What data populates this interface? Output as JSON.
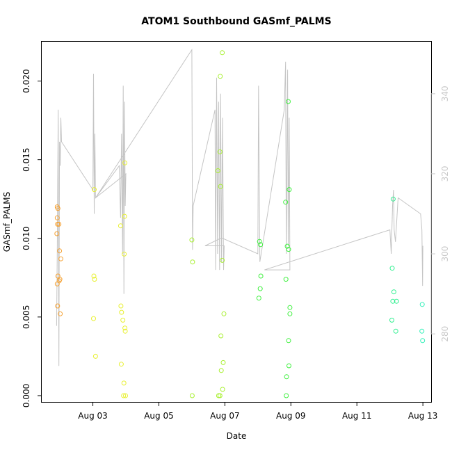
{
  "chart_data": {
    "type": "scatter",
    "title": "ATOM1 Southbound GASmf_PALMS",
    "xlabel": "Date",
    "ylabel": "GASmf_PALMS",
    "xlim": [
      1.45,
      13.25
    ],
    "ylim": [
      -0.0004,
      0.0225
    ],
    "x_unit": "day of August",
    "x_ticks": [
      {
        "value": 3,
        "label": "Aug 03"
      },
      {
        "value": 5,
        "label": "Aug 05"
      },
      {
        "value": 7,
        "label": "Aug 07"
      },
      {
        "value": 9,
        "label": "Aug 09"
      },
      {
        "value": 11,
        "label": "Aug 11"
      },
      {
        "value": 13,
        "label": "Aug 13"
      }
    ],
    "y_ticks": [
      {
        "value": 0,
        "label": "0.000"
      },
      {
        "value": 0.005,
        "label": "0.005"
      },
      {
        "value": 0.01,
        "label": "0.010"
      },
      {
        "value": 0.015,
        "label": "0.015"
      },
      {
        "value": 0.02,
        "label": "0.020"
      }
    ],
    "y2lim": [
      263,
      353
    ],
    "y2_ticks": [
      {
        "value": 280,
        "label": "280"
      },
      {
        "value": 300,
        "label": "300"
      },
      {
        "value": 320,
        "label": "320"
      },
      {
        "value": 340,
        "label": "340"
      }
    ],
    "grid": false,
    "legend": "none",
    "colors": {
      "frame": "#000000",
      "secondary_axis": "#c8c8c8",
      "secondary_line": "#c4c4c4",
      "orange": "#f5a030",
      "yellow": "#e8f030",
      "yellow_green": "#a8f030",
      "green": "#40f040",
      "spring_green": "#30f090",
      "cyan_green": "#30f0b8"
    },
    "points": [
      {
        "x": 1.92,
        "y": 0.012,
        "c": "orange"
      },
      {
        "x": 1.94,
        "y": 0.0119,
        "c": "orange"
      },
      {
        "x": 1.92,
        "y": 0.0113,
        "c": "orange"
      },
      {
        "x": 1.93,
        "y": 0.0109,
        "c": "orange"
      },
      {
        "x": 1.97,
        "y": 0.0109,
        "c": "orange"
      },
      {
        "x": 1.91,
        "y": 0.0103,
        "c": "orange"
      },
      {
        "x": 1.99,
        "y": 0.0092,
        "c": "orange"
      },
      {
        "x": 2.03,
        "y": 0.0087,
        "c": "orange"
      },
      {
        "x": 1.94,
        "y": 0.0076,
        "c": "orange"
      },
      {
        "x": 2.0,
        "y": 0.0074,
        "c": "orange"
      },
      {
        "x": 1.98,
        "y": 0.0073,
        "c": "orange"
      },
      {
        "x": 1.92,
        "y": 0.0071,
        "c": "orange"
      },
      {
        "x": 1.93,
        "y": 0.0057,
        "c": "orange"
      },
      {
        "x": 2.01,
        "y": 0.0052,
        "c": "orange"
      },
      {
        "x": 3.04,
        "y": 0.0131,
        "c": "yellow"
      },
      {
        "x": 3.03,
        "y": 0.0076,
        "c": "yellow"
      },
      {
        "x": 3.05,
        "y": 0.0074,
        "c": "yellow"
      },
      {
        "x": 3.02,
        "y": 0.0049,
        "c": "yellow"
      },
      {
        "x": 3.08,
        "y": 0.0025,
        "c": "yellow"
      },
      {
        "x": 3.97,
        "y": 0.0148,
        "c": "yellow"
      },
      {
        "x": 3.96,
        "y": 0.0114,
        "c": "yellow"
      },
      {
        "x": 3.84,
        "y": 0.0108,
        "c": "yellow"
      },
      {
        "x": 3.95,
        "y": 0.009,
        "c": "yellow"
      },
      {
        "x": 3.85,
        "y": 0.0057,
        "c": "yellow"
      },
      {
        "x": 3.87,
        "y": 0.0053,
        "c": "yellow"
      },
      {
        "x": 3.91,
        "y": 0.0048,
        "c": "yellow"
      },
      {
        "x": 3.97,
        "y": 0.0043,
        "c": "yellow"
      },
      {
        "x": 3.98,
        "y": 0.0041,
        "c": "yellow"
      },
      {
        "x": 3.86,
        "y": 0.002,
        "c": "yellow"
      },
      {
        "x": 3.94,
        "y": 0.0008,
        "c": "yellow"
      },
      {
        "x": 3.93,
        "y": 0.0,
        "c": "yellow"
      },
      {
        "x": 3.99,
        "y": 0.0,
        "c": "yellow"
      },
      {
        "x": 6.0,
        "y": 0.0099,
        "c": "yellow_green"
      },
      {
        "x": 6.02,
        "y": 0.0085,
        "c": "yellow_green"
      },
      {
        "x": 6.01,
        "y": 0.0,
        "c": "yellow_green"
      },
      {
        "x": 6.92,
        "y": 0.0218,
        "c": "yellow_green"
      },
      {
        "x": 6.86,
        "y": 0.0203,
        "c": "yellow_green"
      },
      {
        "x": 6.85,
        "y": 0.0155,
        "c": "yellow_green"
      },
      {
        "x": 6.79,
        "y": 0.0143,
        "c": "yellow_green"
      },
      {
        "x": 6.87,
        "y": 0.0133,
        "c": "yellow_green"
      },
      {
        "x": 6.92,
        "y": 0.0086,
        "c": "yellow_green"
      },
      {
        "x": 6.97,
        "y": 0.0052,
        "c": "yellow_green"
      },
      {
        "x": 6.88,
        "y": 0.0038,
        "c": "yellow_green"
      },
      {
        "x": 6.95,
        "y": 0.0021,
        "c": "yellow_green"
      },
      {
        "x": 6.89,
        "y": 0.0016,
        "c": "yellow_green"
      },
      {
        "x": 6.93,
        "y": 0.0004,
        "c": "yellow_green"
      },
      {
        "x": 6.81,
        "y": 0.0,
        "c": "yellow_green"
      },
      {
        "x": 6.85,
        "y": 0.0,
        "c": "yellow_green"
      },
      {
        "x": 8.05,
        "y": 0.0098,
        "c": "green"
      },
      {
        "x": 8.08,
        "y": 0.0096,
        "c": "green"
      },
      {
        "x": 8.09,
        "y": 0.0076,
        "c": "green"
      },
      {
        "x": 8.07,
        "y": 0.0068,
        "c": "green"
      },
      {
        "x": 8.03,
        "y": 0.0062,
        "c": "green"
      },
      {
        "x": 8.92,
        "y": 0.0187,
        "c": "green"
      },
      {
        "x": 8.95,
        "y": 0.0131,
        "c": "green"
      },
      {
        "x": 8.84,
        "y": 0.0123,
        "c": "green"
      },
      {
        "x": 8.89,
        "y": 0.0095,
        "c": "green"
      },
      {
        "x": 8.93,
        "y": 0.0093,
        "c": "green"
      },
      {
        "x": 8.85,
        "y": 0.0074,
        "c": "green"
      },
      {
        "x": 8.97,
        "y": 0.0056,
        "c": "green"
      },
      {
        "x": 8.97,
        "y": 0.0052,
        "c": "green"
      },
      {
        "x": 8.93,
        "y": 0.0035,
        "c": "green"
      },
      {
        "x": 8.94,
        "y": 0.0019,
        "c": "green"
      },
      {
        "x": 8.87,
        "y": 0.0012,
        "c": "green"
      },
      {
        "x": 8.86,
        "y": 0.0,
        "c": "green"
      },
      {
        "x": 12.1,
        "y": 0.0125,
        "c": "spring_green"
      },
      {
        "x": 12.07,
        "y": 0.0081,
        "c": "spring_green"
      },
      {
        "x": 12.12,
        "y": 0.0066,
        "c": "spring_green"
      },
      {
        "x": 12.09,
        "y": 0.006,
        "c": "spring_green"
      },
      {
        "x": 12.2,
        "y": 0.006,
        "c": "spring_green"
      },
      {
        "x": 12.06,
        "y": 0.0048,
        "c": "spring_green"
      },
      {
        "x": 12.18,
        "y": 0.0041,
        "c": "spring_green"
      },
      {
        "x": 12.98,
        "y": 0.0058,
        "c": "cyan_green"
      },
      {
        "x": 12.97,
        "y": 0.0041,
        "c": "cyan_green"
      },
      {
        "x": 12.99,
        "y": 0.0035,
        "c": "cyan_green"
      }
    ],
    "secondary_series": {
      "type": "line",
      "axis": "right",
      "points": [
        [
          1.9,
          282
        ],
        [
          1.92,
          300
        ],
        [
          1.95,
          336
        ],
        [
          1.97,
          272
        ],
        [
          1.99,
          328
        ],
        [
          2.01,
          322
        ],
        [
          2.03,
          334
        ],
        [
          2.05,
          328
        ],
        [
          3.0,
          316
        ],
        [
          3.02,
          345
        ],
        [
          3.04,
          310
        ],
        [
          3.06,
          330
        ],
        [
          3.08,
          314
        ],
        [
          3.8,
          322
        ],
        [
          3.84,
          309
        ],
        [
          3.87,
          330
        ],
        [
          3.9,
          300
        ],
        [
          3.92,
          342
        ],
        [
          3.94,
          290
        ],
        [
          3.96,
          338
        ],
        [
          3.98,
          312
        ],
        [
          4.0,
          320
        ],
        [
          3.08,
          314
        ],
        [
          6.0,
          351
        ],
        [
          6.02,
          301
        ],
        [
          6.04,
          312
        ],
        [
          6.7,
          336
        ],
        [
          6.72,
          296
        ],
        [
          6.75,
          344
        ],
        [
          6.78,
          300
        ],
        [
          6.81,
          338
        ],
        [
          6.84,
          296
        ],
        [
          6.87,
          340
        ],
        [
          6.9,
          298
        ],
        [
          6.93,
          334
        ],
        [
          6.96,
          296
        ],
        [
          6.98,
          302
        ],
        [
          6.4,
          302
        ],
        [
          6.9,
          304
        ],
        [
          8.0,
          300
        ],
        [
          8.02,
          342
        ],
        [
          8.06,
          298
        ],
        [
          8.8,
          336
        ],
        [
          8.84,
          348
        ],
        [
          8.86,
          300
        ],
        [
          8.9,
          346
        ],
        [
          8.92,
          302
        ],
        [
          8.95,
          334
        ],
        [
          8.97,
          296
        ],
        [
          8.2,
          296
        ],
        [
          12.0,
          306
        ],
        [
          12.04,
          300
        ],
        [
          12.08,
          312
        ],
        [
          12.11,
          316
        ],
        [
          12.13,
          306
        ],
        [
          12.17,
          303
        ],
        [
          12.25,
          314
        ],
        [
          12.93,
          310
        ],
        [
          12.95,
          308
        ],
        [
          12.97,
          306
        ],
        [
          12.99,
          292
        ],
        [
          13.0,
          302
        ]
      ]
    }
  }
}
